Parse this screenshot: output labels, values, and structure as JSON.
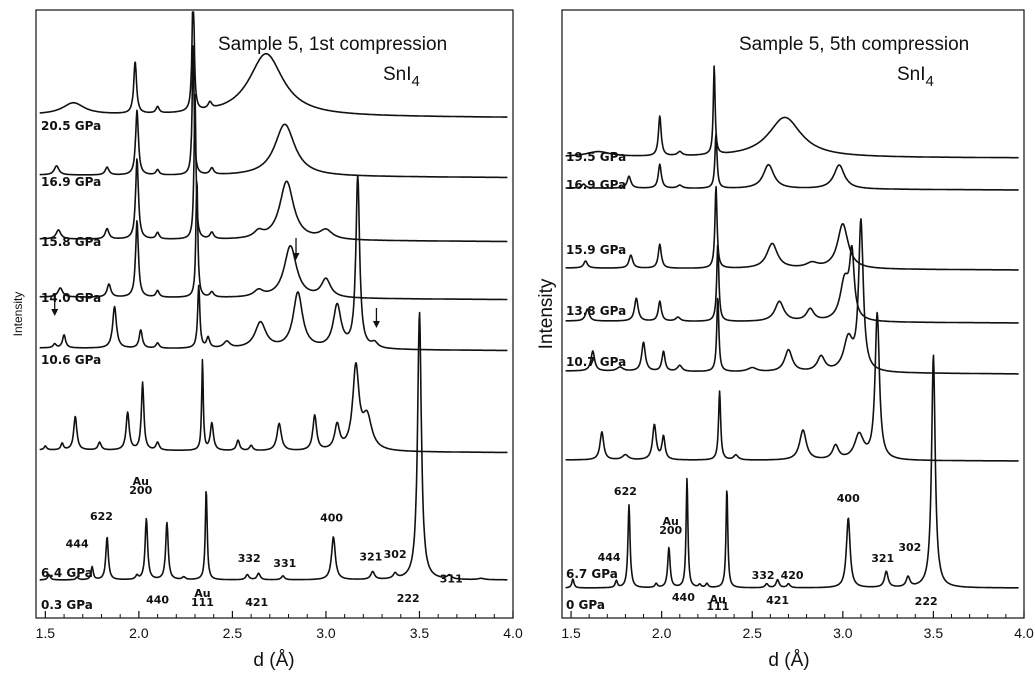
{
  "chart_data": [
    {
      "type": "line",
      "title": "Sample 5, 1st compression",
      "compound": "SnI",
      "compound_subscript": "4",
      "xlabel": "d (Å)",
      "ylabel": "Intensity",
      "xlim": [
        1.45,
        4.0
      ],
      "xticks": [
        1.5,
        2.0,
        2.5,
        3.0,
        3.5,
        4.0
      ],
      "xtick_labels": [
        "1.5",
        "2.0",
        "2.5",
        "3.0",
        "3.5",
        "4.0"
      ],
      "series": [
        {
          "name": "0.3 GPa",
          "baseline": 0.0,
          "tail": 0.0,
          "peaks": [
            [
              1.52,
              0.04,
              0.008
            ],
            [
              1.67,
              0.02,
              0.008
            ],
            [
              1.75,
              0.1,
              0.007
            ],
            [
              1.83,
              0.33,
              0.008
            ],
            [
              1.99,
              0.03,
              0.008
            ],
            [
              2.04,
              0.47,
              0.008
            ],
            [
              2.15,
              0.44,
              0.008
            ],
            [
              2.24,
              0.02,
              0.01
            ],
            [
              2.36,
              0.7,
              0.006
            ],
            [
              2.58,
              0.04,
              0.01
            ],
            [
              2.64,
              0.05,
              0.01
            ],
            [
              2.77,
              0.03,
              0.01
            ],
            [
              3.04,
              0.33,
              0.012
            ],
            [
              3.25,
              0.06,
              0.012
            ],
            [
              3.37,
              0.04,
              0.012
            ],
            [
              3.5,
              2.06,
              0.012
            ],
            [
              3.66,
              0.03,
              0.014
            ],
            [
              3.83,
              0.01,
              0.02
            ]
          ]
        },
        {
          "name": "6.4 GPa",
          "baseline": 0.6,
          "tail": 0.58,
          "peaks": [
            [
              1.5,
              0.03,
              0.008
            ],
            [
              1.59,
              0.05,
              0.008
            ],
            [
              1.66,
              0.26,
              0.01
            ],
            [
              1.79,
              0.06,
              0.01
            ],
            [
              1.94,
              0.29,
              0.01
            ],
            [
              2.02,
              0.52,
              0.008
            ],
            [
              2.1,
              0.06,
              0.01
            ],
            [
              2.34,
              0.7,
              0.005
            ],
            [
              2.39,
              0.21,
              0.01
            ],
            [
              2.53,
              0.08,
              0.01
            ],
            [
              2.6,
              0.04,
              0.01
            ],
            [
              2.75,
              0.21,
              0.014
            ],
            [
              2.94,
              0.27,
              0.012
            ],
            [
              3.06,
              0.19,
              0.016
            ],
            [
              3.16,
              0.63,
              0.02
            ],
            [
              3.22,
              0.25,
              0.03
            ]
          ]
        },
        {
          "name": "10.6 GPa",
          "baseline": 1.22,
          "tail": 1.2,
          "peaks": [
            [
              1.55,
              0.03,
              0.01
            ],
            [
              1.6,
              0.1,
              0.01
            ],
            [
              1.87,
              0.32,
              0.012
            ],
            [
              2.01,
              0.14,
              0.01
            ],
            [
              2.1,
              0.04,
              0.01
            ],
            [
              2.32,
              0.48,
              0.007
            ],
            [
              2.37,
              0.08,
              0.01
            ],
            [
              2.47,
              0.05,
              0.02
            ],
            [
              2.65,
              0.2,
              0.035
            ],
            [
              2.85,
              0.43,
              0.03
            ],
            [
              3.06,
              0.33,
              0.025
            ],
            [
              3.17,
              1.32,
              0.012
            ],
            [
              3.26,
              0.04,
              0.02
            ]
          ]
        },
        {
          "name": "14.0 GPa",
          "baseline": 1.52,
          "tail": 1.5,
          "peaks": [
            [
              1.58,
              0.07,
              0.015
            ],
            [
              1.84,
              0.1,
              0.012
            ],
            [
              1.99,
              0.59,
              0.009
            ],
            [
              2.1,
              0.05,
              0.01
            ],
            [
              2.31,
              0.92,
              0.006
            ],
            [
              2.39,
              0.04,
              0.012
            ],
            [
              2.64,
              0.05,
              0.03
            ],
            [
              2.81,
              0.4,
              0.04
            ],
            [
              3.0,
              0.14,
              0.03
            ]
          ]
        },
        {
          "name": "15.8 GPa",
          "baseline": 1.87,
          "tail": 1.85,
          "peaks": [
            [
              1.57,
              0.07,
              0.015
            ],
            [
              1.83,
              0.08,
              0.012
            ],
            [
              1.99,
              0.62,
              0.009
            ],
            [
              2.1,
              0.05,
              0.01
            ],
            [
              2.3,
              1.12,
              0.006
            ],
            [
              2.39,
              0.05,
              0.012
            ],
            [
              2.64,
              0.05,
              0.03
            ],
            [
              2.79,
              0.45,
              0.045
            ],
            [
              3.0,
              0.07,
              0.04
            ]
          ]
        },
        {
          "name": "16.9 GPa",
          "baseline": 2.23,
          "tail": 2.21,
          "peaks": [
            [
              1.56,
              0.07,
              0.015
            ],
            [
              1.83,
              0.06,
              0.012
            ],
            [
              1.99,
              0.5,
              0.009
            ],
            [
              2.1,
              0.04,
              0.01
            ],
            [
              2.29,
              1.0,
              0.006
            ],
            [
              2.39,
              0.05,
              0.012
            ],
            [
              2.78,
              0.4,
              0.065
            ]
          ]
        },
        {
          "name": "20.5 GPa",
          "baseline": 2.57,
          "tail": 2.55,
          "peaks": [
            [
              1.65,
              0.09,
              0.07
            ],
            [
              1.98,
              0.4,
              0.009
            ],
            [
              2.1,
              0.05,
              0.01
            ],
            [
              2.29,
              1.1,
              0.006
            ],
            [
              2.38,
              0.05,
              0.012
            ],
            [
              2.68,
              0.48,
              0.11
            ]
          ]
        }
      ],
      "annotations": {
        "hkl": [
          {
            "text": "622",
            "d": 1.8,
            "level": 0.46
          },
          {
            "text": "444",
            "d": 1.67,
            "level": 0.25
          },
          {
            "text": "Au",
            "d": 2.01,
            "level": 0.73
          },
          {
            "text": "200",
            "d": 2.01,
            "level": 0.66
          },
          {
            "text": "440",
            "d": 2.1,
            "level": -0.18
          },
          {
            "text": "Au",
            "d": 2.34,
            "level": -0.13
          },
          {
            "text": "111",
            "d": 2.34,
            "level": -0.2
          },
          {
            "text": "332",
            "d": 2.59,
            "level": 0.14
          },
          {
            "text": "421",
            "d": 2.63,
            "level": -0.2
          },
          {
            "text": "331",
            "d": 2.78,
            "level": 0.1
          },
          {
            "text": "400",
            "d": 3.03,
            "level": 0.45
          },
          {
            "text": "321",
            "d": 3.24,
            "level": 0.15
          },
          {
            "text": "302",
            "d": 3.37,
            "level": 0.17
          },
          {
            "text": "222",
            "d": 3.44,
            "level": -0.17
          },
          {
            "text": "311",
            "d": 3.67,
            "level": -0.02
          }
        ],
        "arrows_d": [
          1.55,
          2.84,
          3.27
        ]
      }
    },
    {
      "type": "line",
      "title": "Sample 5, 5th compression",
      "compound": "SnI",
      "compound_subscript": "4",
      "xlabel": "d (Å)",
      "ylabel": "Intensity",
      "xlim": [
        1.45,
        4.0
      ],
      "xticks": [
        1.5,
        2.0,
        2.5,
        3.0,
        3.5,
        4.0
      ],
      "xtick_labels": [
        "1.5",
        "2.0",
        "2.5",
        "3.0",
        "3.5",
        "4.0"
      ],
      "series": [
        {
          "name": "0 GPa",
          "baseline": 0.0,
          "tail": 0.0,
          "peaks": [
            [
              1.51,
              0.09,
              0.007
            ],
            [
              1.75,
              0.07,
              0.007
            ],
            [
              1.82,
              0.83,
              0.007
            ],
            [
              1.97,
              0.04,
              0.008
            ],
            [
              2.04,
              0.4,
              0.008
            ],
            [
              2.14,
              1.1,
              0.006
            ],
            [
              2.21,
              0.03,
              0.008
            ],
            [
              2.25,
              0.04,
              0.008
            ],
            [
              2.36,
              1.0,
              0.006
            ],
            [
              2.58,
              0.04,
              0.01
            ],
            [
              2.64,
              0.08,
              0.01
            ],
            [
              2.7,
              0.04,
              0.01
            ],
            [
              3.03,
              0.7,
              0.012
            ],
            [
              3.24,
              0.16,
              0.012
            ],
            [
              3.36,
              0.1,
              0.012
            ],
            [
              3.5,
              2.33,
              0.012
            ]
          ]
        },
        {
          "name": "6.7 GPa",
          "baseline": 0.87,
          "tail": 0.86,
          "peaks": [
            [
              1.67,
              0.28,
              0.012
            ],
            [
              1.8,
              0.05,
              0.02
            ],
            [
              1.96,
              0.35,
              0.012
            ],
            [
              2.01,
              0.23,
              0.01
            ],
            [
              2.32,
              0.69,
              0.007
            ],
            [
              2.41,
              0.05,
              0.015
            ],
            [
              2.78,
              0.3,
              0.022
            ],
            [
              2.96,
              0.14,
              0.02
            ],
            [
              3.09,
              0.25,
              0.03
            ],
            [
              3.19,
              1.46,
              0.014
            ]
          ]
        },
        {
          "name": "10.7 GPa",
          "baseline": 1.5,
          "tail": 1.47,
          "peaks": [
            [
              1.62,
              0.2,
              0.012
            ],
            [
              1.77,
              0.04,
              0.02
            ],
            [
              1.9,
              0.29,
              0.012
            ],
            [
              2.01,
              0.2,
              0.01
            ],
            [
              2.1,
              0.06,
              0.015
            ],
            [
              2.31,
              0.75,
              0.007
            ],
            [
              2.5,
              0.04,
              0.03
            ],
            [
              2.7,
              0.22,
              0.025
            ],
            [
              2.88,
              0.15,
              0.025
            ],
            [
              3.03,
              0.32,
              0.03
            ],
            [
              3.1,
              1.49,
              0.015
            ]
          ]
        },
        {
          "name": "13.8 GPa",
          "baseline": 1.88,
          "tail": 1.86,
          "peaks": [
            [
              1.59,
              0.12,
              0.012
            ],
            [
              1.86,
              0.23,
              0.012
            ],
            [
              1.99,
              0.2,
              0.01
            ],
            [
              2.09,
              0.04,
              0.015
            ],
            [
              2.31,
              0.78,
              0.007
            ],
            [
              2.65,
              0.2,
              0.03
            ],
            [
              2.82,
              0.12,
              0.025
            ],
            [
              3.01,
              0.4,
              0.03
            ],
            [
              3.05,
              0.62,
              0.015
            ]
          ]
        },
        {
          "name": "15.9 GPa",
          "baseline": 2.23,
          "tail": 2.21,
          "peaks": [
            [
              1.58,
              0.07,
              0.012
            ],
            [
              1.83,
              0.13,
              0.012
            ],
            [
              1.99,
              0.24,
              0.01
            ],
            [
              2.3,
              0.82,
              0.007
            ],
            [
              2.61,
              0.25,
              0.035
            ],
            [
              2.83,
              0.05,
              0.04
            ],
            [
              3.0,
              0.45,
              0.035
            ]
          ]
        },
        {
          "name": "16.9 GPa",
          "baseline": 2.66,
          "tail": 2.64,
          "peaks": [
            [
              1.57,
              0.04,
              0.012
            ],
            [
              1.82,
              0.12,
              0.012
            ],
            [
              1.99,
              0.24,
              0.01
            ],
            [
              2.1,
              0.03,
              0.015
            ],
            [
              2.3,
              0.55,
              0.007
            ],
            [
              2.59,
              0.24,
              0.035
            ],
            [
              2.98,
              0.24,
              0.035
            ]
          ]
        },
        {
          "name": "19.5 GPa",
          "baseline": 2.87,
          "tail": 2.86,
          "peaks": [
            [
              1.65,
              0.05,
              0.08
            ],
            [
              1.99,
              0.4,
              0.009
            ],
            [
              2.1,
              0.04,
              0.015
            ],
            [
              2.29,
              0.89,
              0.006
            ],
            [
              2.68,
              0.4,
              0.11
            ]
          ]
        }
      ],
      "annotations": {
        "hkl": [
          {
            "text": "622",
            "d": 1.8,
            "level": 0.93
          },
          {
            "text": "444",
            "d": 1.71,
            "level": 0.27
          },
          {
            "text": "Au",
            "d": 2.05,
            "level": 0.63
          },
          {
            "text": "200",
            "d": 2.05,
            "level": 0.54
          },
          {
            "text": "440",
            "d": 2.12,
            "level": -0.13
          },
          {
            "text": "Au",
            "d": 2.31,
            "level": -0.15
          },
          {
            "text": "111",
            "d": 2.31,
            "level": -0.22
          },
          {
            "text": "332",
            "d": 2.56,
            "level": 0.09
          },
          {
            "text": "421",
            "d": 2.64,
            "level": -0.16
          },
          {
            "text": "420",
            "d": 2.72,
            "level": 0.09
          },
          {
            "text": "400",
            "d": 3.03,
            "level": 0.86
          },
          {
            "text": "321",
            "d": 3.22,
            "level": 0.26
          },
          {
            "text": "302",
            "d": 3.37,
            "level": 0.37
          },
          {
            "text": "222",
            "d": 3.46,
            "level": -0.17
          }
        ],
        "arrows_d": []
      }
    }
  ]
}
